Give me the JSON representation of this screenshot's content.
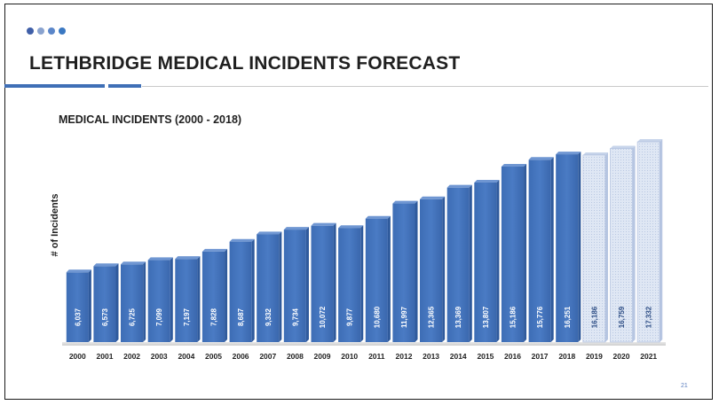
{
  "slide": {
    "title": "LETHBRIDGE MEDICAL INCIDENTS FORECAST",
    "page_number": "21",
    "accent_color": "#3f6fb6",
    "dot_colors": [
      "#3f5fa8",
      "#8aa3cf",
      "#5b86c9",
      "#3a78c2"
    ]
  },
  "chart_data": {
    "type": "bar",
    "title": "MEDICAL INCIDENTS (2000 - 2018)",
    "ylabel": "# of Incidents",
    "xlabel": "",
    "categories": [
      "2000",
      "2001",
      "2002",
      "2003",
      "2004",
      "2005",
      "2006",
      "2007",
      "2008",
      "2009",
      "2010",
      "2011",
      "2012",
      "2013",
      "2014",
      "2015",
      "2016",
      "2017",
      "2018",
      "2019",
      "2020",
      "2021"
    ],
    "values": [
      6037,
      6573,
      6725,
      7099,
      7197,
      7828,
      8687,
      9332,
      9734,
      10072,
      9877,
      10680,
      11997,
      12365,
      13369,
      13807,
      15186,
      15776,
      16251,
      16186,
      16759,
      17332
    ],
    "value_labels": [
      "6,037",
      "6,573",
      "6,725",
      "7,099",
      "7,197",
      "7,828",
      "8,687",
      "9,332",
      "9,734",
      "10,072",
      "9,877",
      "10,680",
      "11,997",
      "12,365",
      "13,369",
      "13,807",
      "15,186",
      "15,776",
      "16,251",
      "16,186",
      "16,759",
      "17,332"
    ],
    "forecast_categories": [
      "2019",
      "2020",
      "2021"
    ],
    "bar_color": "#4a7bc4",
    "forecast_color": "#dfe7f4",
    "ylim": [
      0,
      17332
    ],
    "grid": false,
    "legend": "none"
  }
}
